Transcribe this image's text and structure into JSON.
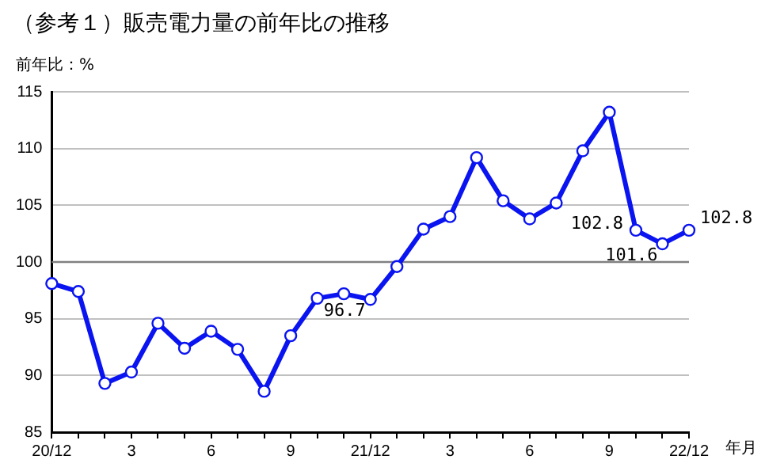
{
  "chart_data": {
    "type": "line",
    "title": "（参考１）販売電力量の前年比の推移",
    "ylabel": "前年比：%",
    "xlabel": "年月",
    "categories": [
      "20/12",
      null,
      null,
      "3",
      null,
      null,
      "6",
      null,
      null,
      "9",
      null,
      null,
      "21/12",
      null,
      null,
      "3",
      null,
      null,
      "6",
      null,
      null,
      "9",
      null,
      null,
      "22/12"
    ],
    "series": [
      {
        "color": "#0a14f0",
        "values": [
          98.1,
          97.4,
          89.3,
          90.3,
          94.6,
          92.4,
          93.9,
          92.3,
          88.6,
          93.5,
          96.8,
          97.2,
          96.7,
          99.6,
          102.9,
          104.0,
          109.2,
          105.4,
          103.8,
          105.2,
          109.8,
          113.2,
          102.8,
          101.6,
          102.8
        ],
        "value_labels": [
          null,
          null,
          null,
          null,
          null,
          null,
          null,
          null,
          null,
          null,
          null,
          null,
          "96.7",
          null,
          null,
          null,
          null,
          null,
          null,
          null,
          null,
          null,
          "102.8",
          "101.6",
          "102.8"
        ]
      }
    ],
    "ylim": [
      85,
      115
    ],
    "yticks": [
      85,
      90,
      95,
      100,
      105,
      110,
      115
    ],
    "grid": "y",
    "marker": "circle",
    "line_style": "solid",
    "ref_lines": [
      {
        "axis": "y",
        "value": 100,
        "color": "#808080"
      }
    ]
  }
}
